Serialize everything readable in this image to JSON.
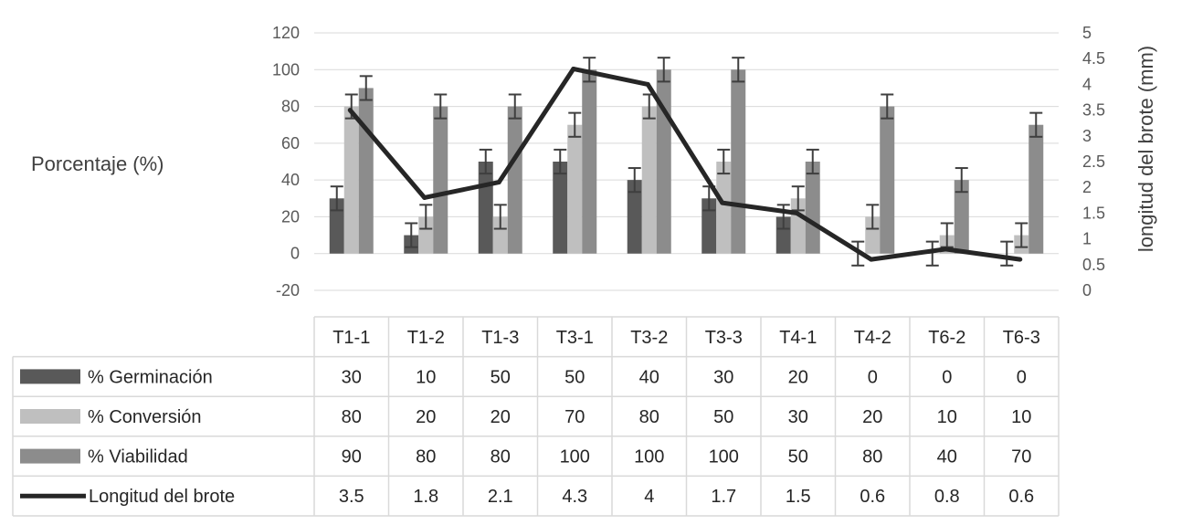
{
  "chart_data": {
    "type": "bar",
    "categories": [
      "T1-1",
      "T1-2",
      "T1-3",
      "T3-1",
      "T3-2",
      "T3-3",
      "T4-1",
      "T4-2",
      "T6-2",
      "T6-3"
    ],
    "ylabel": "Porcentaje (%)",
    "y2label": "longitud del brote (mm)",
    "ylim": [
      -20,
      120
    ],
    "yticks": [
      -20,
      0,
      20,
      40,
      60,
      80,
      100,
      120
    ],
    "y2lim": [
      0,
      5
    ],
    "y2ticks": [
      "0",
      "0.5",
      "1",
      "1.5",
      "2",
      "2.5",
      "3",
      "3.5",
      "4",
      "4.5",
      "5"
    ],
    "error_bars": true,
    "data_table": true,
    "series": [
      {
        "name": "% Germinación",
        "type": "bar",
        "color": "#595959",
        "values": [
          30,
          10,
          50,
          50,
          40,
          30,
          20,
          0,
          0,
          0
        ],
        "labels": [
          "30",
          "10",
          "50",
          "50",
          "40",
          "30",
          "20",
          "0",
          "0",
          "0"
        ]
      },
      {
        "name": "% Conversión",
        "type": "bar",
        "color": "#bfbfbf",
        "values": [
          80,
          20,
          20,
          70,
          80,
          50,
          30,
          20,
          10,
          10
        ],
        "labels": [
          "80",
          "20",
          "20",
          "70",
          "80",
          "50",
          "30",
          "20",
          "10",
          "10"
        ]
      },
      {
        "name": "% Viabilidad",
        "type": "bar",
        "color": "#8c8c8c",
        "values": [
          90,
          80,
          80,
          100,
          100,
          100,
          50,
          80,
          40,
          70
        ],
        "labels": [
          "90",
          "80",
          "80",
          "100",
          "100",
          "100",
          "50",
          "80",
          "40",
          "70"
        ]
      },
      {
        "name": "Longitud del brote",
        "type": "line",
        "axis": "secondary",
        "color": "#262626",
        "values": [
          3.5,
          1.8,
          2.1,
          4.3,
          4.0,
          1.7,
          1.5,
          0.6,
          0.8,
          0.6
        ],
        "labels": [
          "3.5",
          "1.8",
          "2.1",
          "4.3",
          "4",
          "1.7",
          "1.5",
          "0.6",
          "0.8",
          "0.6"
        ]
      }
    ]
  }
}
